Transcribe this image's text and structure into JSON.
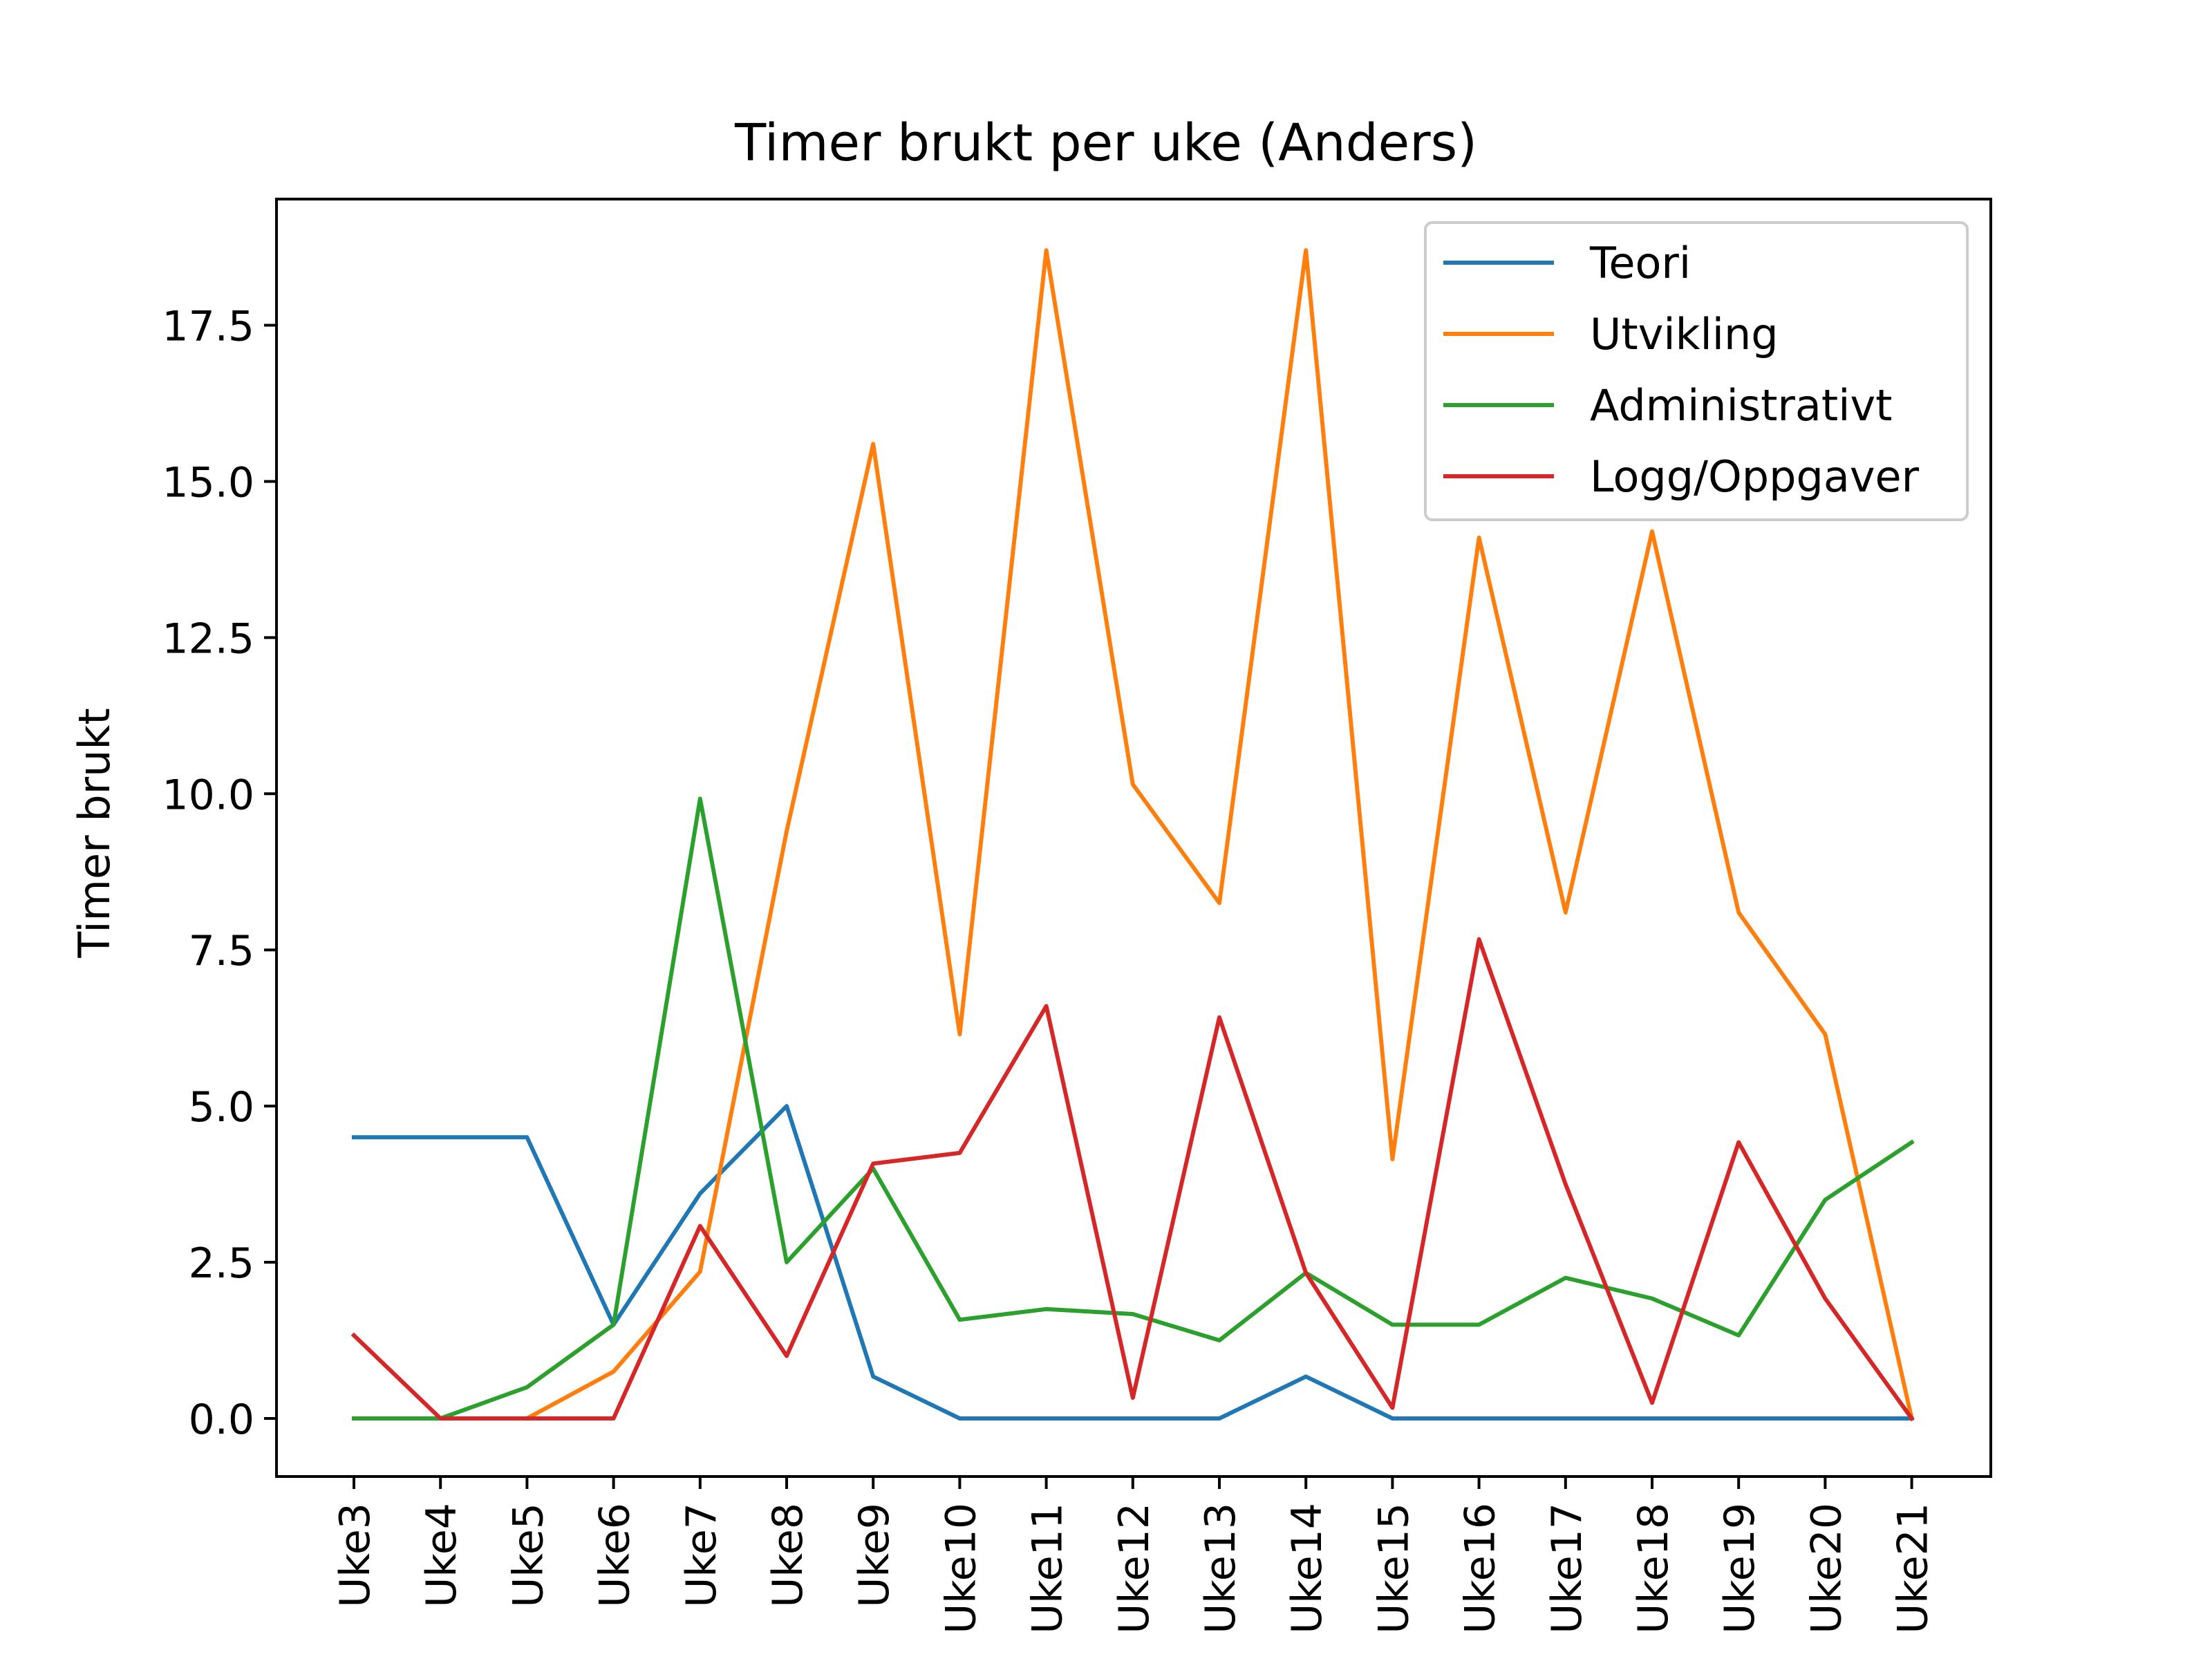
{
  "chart_data": {
    "type": "line",
    "title": "Timer brukt per uke (Anders)",
    "xlabel": "",
    "ylabel": "Timer brukt",
    "categories": [
      "Uke3",
      "Uke4",
      "Uke5",
      "Uke6",
      "Uke7",
      "Uke8",
      "Uke9",
      "Uke10",
      "Uke11",
      "Uke12",
      "Uke13",
      "Uke14",
      "Uke15",
      "Uke16",
      "Uke17",
      "Uke18",
      "Uke19",
      "Uke20",
      "Uke21"
    ],
    "ylim": [
      -0.93,
      19.52
    ],
    "yticks": [
      0.0,
      2.5,
      5.0,
      7.5,
      10.0,
      12.5,
      15.0,
      17.5
    ],
    "ytick_labels": [
      "0.0",
      "2.5",
      "5.0",
      "7.5",
      "10.0",
      "12.5",
      "15.0",
      "17.5"
    ],
    "grid": false,
    "legend_position": "top-right",
    "series": [
      {
        "name": "Teori",
        "color": "#1f77b4",
        "values": [
          4.5,
          4.5,
          4.5,
          1.5,
          3.6,
          5.0,
          0.67,
          0,
          0,
          0,
          0,
          0.67,
          0,
          0,
          0,
          0,
          0,
          0,
          0
        ]
      },
      {
        "name": "Utvikling",
        "color": "#ff7f0e",
        "values": [
          0,
          0,
          0,
          0.75,
          2.35,
          9.4,
          15.6,
          6.15,
          18.7,
          10.15,
          8.25,
          18.7,
          4.15,
          14.1,
          8.1,
          14.2,
          8.1,
          6.15,
          0
        ]
      },
      {
        "name": "Administrativt",
        "color": "#2ca02c",
        "values": [
          0,
          0,
          0.5,
          1.5,
          9.92,
          2.5,
          4.0,
          1.58,
          1.75,
          1.67,
          1.25,
          2.33,
          1.5,
          1.5,
          2.25,
          1.92,
          1.33,
          3.5,
          4.42
        ]
      },
      {
        "name": "Logg/Oppgaver",
        "color": "#d62728",
        "values": [
          1.33,
          0,
          0,
          0,
          3.08,
          1.0,
          4.08,
          4.25,
          6.6,
          0.33,
          6.42,
          2.33,
          0.17,
          7.67,
          3.75,
          0.25,
          4.42,
          1.92,
          0
        ]
      }
    ]
  }
}
